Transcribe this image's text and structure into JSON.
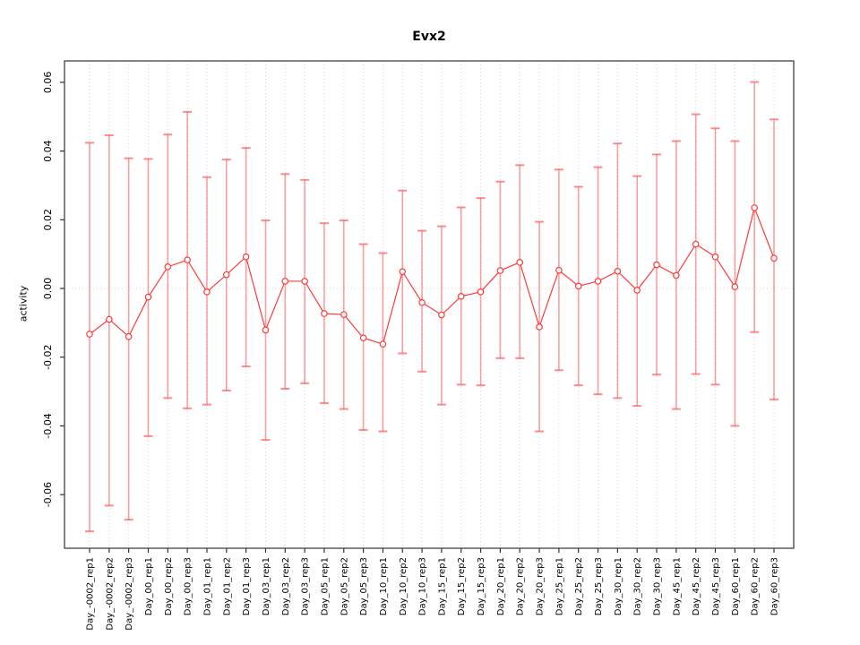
{
  "chart_data": {
    "type": "line",
    "title": "Evx2",
    "xlabel": "",
    "ylabel": "activity",
    "ylim": [
      -0.075,
      0.066
    ],
    "yticks": [
      -0.06,
      -0.04,
      -0.02,
      0.0,
      0.02,
      0.04,
      0.06
    ],
    "grid": "dotted vertical line at each category; dotted horizontal line at y=0",
    "legend": "none",
    "marker": "open-circle",
    "error_bars": true,
    "categories": [
      "Day_-0002_rep1",
      "Day_-0002_rep2",
      "Day_-0002_rep3",
      "Day_00_rep1",
      "Day_00_rep2",
      "Day_00_rep3",
      "Day_01_rep1",
      "Day_01_rep2",
      "Day_01_rep3",
      "Day_03_rep1",
      "Day_03_rep2",
      "Day_03_rep3",
      "Day_05_rep1",
      "Day_05_rep2",
      "Day_05_rep3",
      "Day_10_rep1",
      "Day_10_rep2",
      "Day_10_rep3",
      "Day_15_rep1",
      "Day_15_rep2",
      "Day_15_rep3",
      "Day_20_rep1",
      "Day_20_rep2",
      "Day_20_rep3",
      "Day_25_rep1",
      "Day_25_rep2",
      "Day_25_rep3",
      "Day_30_rep1",
      "Day_30_rep2",
      "Day_30_rep3",
      "Day_45_rep1",
      "Day_45_rep2",
      "Day_45_rep3",
      "Day_60_rep1",
      "Day_60_rep2",
      "Day_60_rep3"
    ],
    "series": [
      {
        "name": "activity",
        "values": [
          -0.0133,
          -0.009,
          -0.014,
          -0.0025,
          0.0063,
          0.0083,
          -0.001,
          0.004,
          0.0092,
          -0.0121,
          0.0021,
          0.0021,
          -0.0073,
          -0.0076,
          -0.0144,
          -0.0162,
          0.0049,
          -0.0041,
          -0.0077,
          -0.0023,
          -0.001,
          0.0052,
          0.0076,
          -0.0112,
          0.0053,
          0.0007,
          0.0021,
          0.005,
          -0.0005,
          0.0069,
          0.0038,
          0.0129,
          0.0092,
          0.0005,
          0.0235,
          0.0088
        ],
        "error_low": [
          -0.0707,
          -0.0632,
          -0.0673,
          -0.043,
          -0.0319,
          -0.0349,
          -0.0338,
          -0.0297,
          -0.0227,
          -0.0441,
          -0.0292,
          -0.0276,
          -0.0334,
          -0.0351,
          -0.0412,
          -0.0416,
          -0.0189,
          -0.0242,
          -0.0338,
          -0.028,
          -0.0282,
          -0.0203,
          -0.0203,
          -0.0416,
          -0.0238,
          -0.0282,
          -0.0308,
          -0.0319,
          -0.0342,
          -0.0251,
          -0.0351,
          -0.0249,
          -0.028,
          -0.04,
          -0.0127,
          -0.0323
        ],
        "error_high": [
          0.0424,
          0.0446,
          0.0379,
          0.0377,
          0.0448,
          0.0514,
          0.0324,
          0.0375,
          0.0409,
          0.0198,
          0.0333,
          0.0316,
          0.019,
          0.0198,
          0.0129,
          0.0103,
          0.0285,
          0.0168,
          0.0181,
          0.0236,
          0.0263,
          0.0311,
          0.0359,
          0.0194,
          0.0346,
          0.0296,
          0.0353,
          0.0422,
          0.0327,
          0.039,
          0.0429,
          0.0507,
          0.0466,
          0.0429,
          0.0601,
          0.0492
        ]
      }
    ],
    "colors": {
      "point_line": "#ff3b3b",
      "error_bar": "#ff4646",
      "grid": "#d9d9d9",
      "axis": "#333333",
      "text": "#000000",
      "background": "#ffffff"
    }
  }
}
